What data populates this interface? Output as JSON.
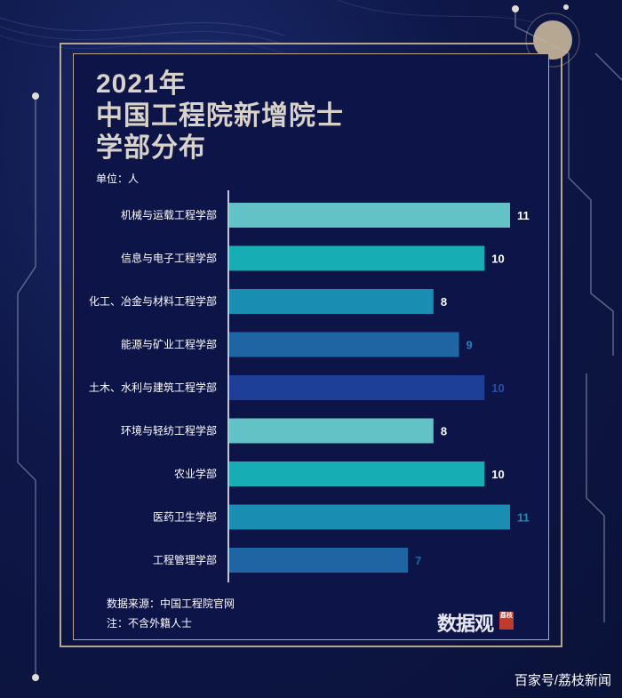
{
  "header": {
    "title_line1": "2021年",
    "title_line2": "中国工程院新增院士",
    "title_line3": "学部分布",
    "unit": "单位：人"
  },
  "chart_data": {
    "type": "bar",
    "orientation": "horizontal",
    "categories": [
      "机械与运载工程学部",
      "信息与电子工程学部",
      "化工、冶金与材料工程学部",
      "能源与矿业工程学部",
      "土木、水利与建筑工程学部",
      "环境与轻纺工程学部",
      "农业学部",
      "医药卫生学部",
      "工程管理学部"
    ],
    "values": [
      11,
      10,
      8,
      9,
      10,
      8,
      10,
      11,
      7
    ],
    "bar_colors": [
      "#63c2c6",
      "#17adb4",
      "#1a8db3",
      "#1e65a3",
      "#1e3f97",
      "#63c2c6",
      "#17adb4",
      "#1a8db3",
      "#1e65a3"
    ],
    "label_colors": [
      "#ffffff",
      "#ffffff",
      "#ffffff",
      "#2a7fb8",
      "#2a4fa8",
      "#ffffff",
      "#ffffff",
      "#1a8db3",
      "#1e65a3"
    ],
    "xlim": [
      0,
      11
    ],
    "grid": false,
    "legend": "none"
  },
  "footer": {
    "source": "数据来源：中国工程院官网",
    "note": "注：不含外籍人士",
    "logo_text": "数据观",
    "logo_badge": "荔枝",
    "credit": "百家号/荔枝新闻"
  },
  "colors": {
    "background": "#0e1748",
    "frame_gold": "#b8a58c",
    "title": "#d8d2c8"
  }
}
